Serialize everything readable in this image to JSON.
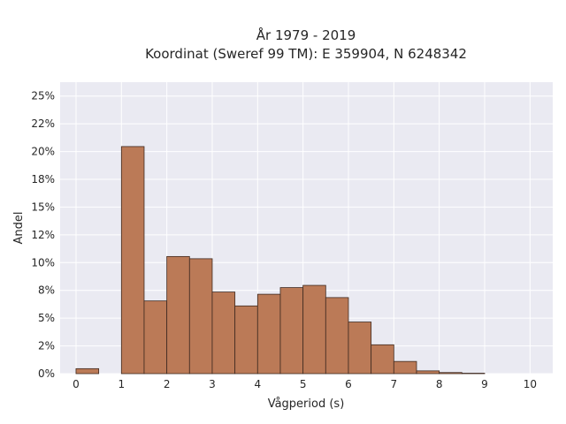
{
  "chart_data": {
    "type": "bar",
    "title": "År 1979 - 2019",
    "subtitle": "Koordinat (Sweref 99 TM): E 359904, N 6248342",
    "xlabel": "Vågperiod (s)",
    "ylabel": "Andel",
    "xlim": [
      -0.35,
      10.5
    ],
    "ylim": [
      0,
      0.2625
    ],
    "x_ticks": [
      0,
      1,
      2,
      3,
      4,
      5,
      6,
      7,
      8,
      9,
      10
    ],
    "x_tick_labels": [
      "0",
      "1",
      "2",
      "3",
      "4",
      "5",
      "6",
      "7",
      "8",
      "9",
      "10"
    ],
    "y_ticks": [
      0,
      0.025,
      0.05,
      0.075,
      0.1,
      0.125,
      0.15,
      0.175,
      0.2,
      0.225,
      0.25
    ],
    "y_tick_labels": [
      "0%",
      "2%",
      "5%",
      "8%",
      "10%",
      "12%",
      "15%",
      "18%",
      "20%",
      "22%",
      "25%"
    ],
    "bin_width": 0.5,
    "bins": [
      {
        "x": 0.0,
        "value": 0.0045
      },
      {
        "x": 0.5,
        "value": 0.0
      },
      {
        "x": 1.0,
        "value": 0.2045
      },
      {
        "x": 1.5,
        "value": 0.0655
      },
      {
        "x": 2.0,
        "value": 0.1055
      },
      {
        "x": 2.5,
        "value": 0.1035
      },
      {
        "x": 3.0,
        "value": 0.0735
      },
      {
        "x": 3.5,
        "value": 0.061
      },
      {
        "x": 4.0,
        "value": 0.0715
      },
      {
        "x": 4.5,
        "value": 0.0775
      },
      {
        "x": 5.0,
        "value": 0.0795
      },
      {
        "x": 5.5,
        "value": 0.0685
      },
      {
        "x": 6.0,
        "value": 0.0465
      },
      {
        "x": 6.5,
        "value": 0.026
      },
      {
        "x": 7.0,
        "value": 0.011
      },
      {
        "x": 7.5,
        "value": 0.0025
      },
      {
        "x": 8.0,
        "value": 0.001
      },
      {
        "x": 8.5,
        "value": 0.0004
      }
    ],
    "grid": true,
    "colors": {
      "bar_fill": "#bb7a57",
      "bar_edge": "#3f2a20",
      "plot_background": "#eaeaf2",
      "grid": "#ffffff",
      "text": "#262626"
    }
  }
}
